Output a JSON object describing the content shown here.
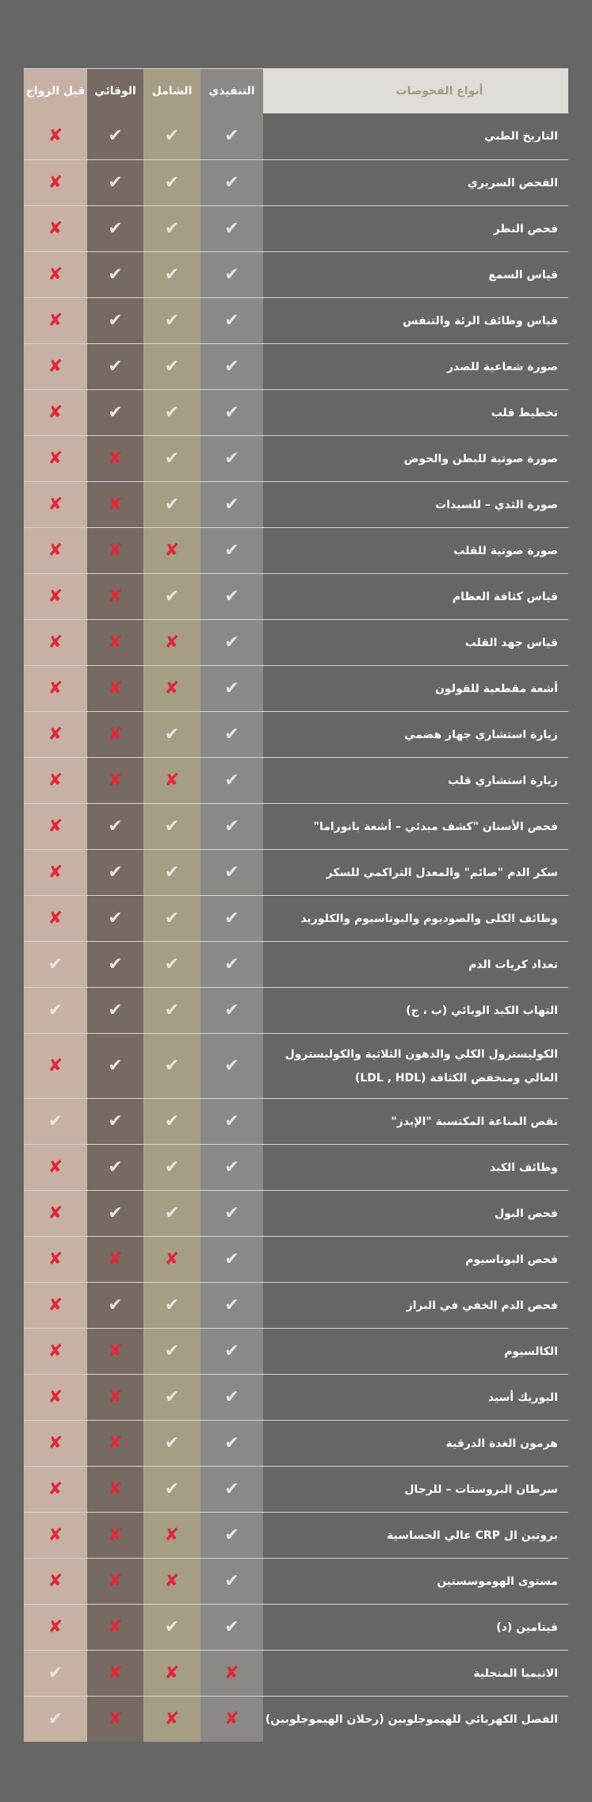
{
  "colors": {
    "background": "#666666",
    "header_bg": "#e0dcd7",
    "col_executive": "#8c8885",
    "col_comprehensive": "#a59e84",
    "col_preventive": "#766a62",
    "col_premarital": "#c7b1a4",
    "check": "#e8e4e0",
    "cross": "#e0283c"
  },
  "header": {
    "types_label": "أنواع الفحوصات",
    "executive": "التنفيذي",
    "comprehensive": "الشامل",
    "preventive": "الوقائي",
    "premarital": "قبل الزواج"
  },
  "icons": {
    "included": "check-icon",
    "excluded": "cross-icon"
  },
  "rows": [
    {
      "label": "التاريخ الطبي",
      "executive": true,
      "comprehensive": true,
      "preventive": true,
      "premarital": false
    },
    {
      "label": "الفحص السريري",
      "executive": true,
      "comprehensive": true,
      "preventive": true,
      "premarital": false
    },
    {
      "label": "فحص النظر",
      "executive": true,
      "comprehensive": true,
      "preventive": true,
      "premarital": false
    },
    {
      "label": "قياس السمع",
      "executive": true,
      "comprehensive": true,
      "preventive": true,
      "premarital": false
    },
    {
      "label": "قياس وظائف الرئة والتنفس",
      "executive": true,
      "comprehensive": true,
      "preventive": true,
      "premarital": false
    },
    {
      "label": "صورة شعاعية للصدر",
      "executive": true,
      "comprehensive": true,
      "preventive": true,
      "premarital": false
    },
    {
      "label": "تخطيط قلب",
      "executive": true,
      "comprehensive": true,
      "preventive": true,
      "premarital": false
    },
    {
      "label": "صورة صوتية للبطن والحوض",
      "executive": true,
      "comprehensive": true,
      "preventive": false,
      "premarital": false
    },
    {
      "label": "صورة الثدي – للسيدات",
      "executive": true,
      "comprehensive": true,
      "preventive": false,
      "premarital": false
    },
    {
      "label": "صورة صوتية للقلب",
      "executive": true,
      "comprehensive": false,
      "preventive": false,
      "premarital": false
    },
    {
      "label": "قياس كثافة العظام",
      "executive": true,
      "comprehensive": true,
      "preventive": false,
      "premarital": false
    },
    {
      "label": "قياس جهد القلب",
      "executive": true,
      "comprehensive": false,
      "preventive": false,
      "premarital": false
    },
    {
      "label": "أشعة مقطعية للقولون",
      "executive": true,
      "comprehensive": false,
      "preventive": false,
      "premarital": false
    },
    {
      "label": "زيارة استشاري جهاز هضمي",
      "executive": true,
      "comprehensive": true,
      "preventive": false,
      "premarital": false
    },
    {
      "label": "زيارة استشاري قلب",
      "executive": true,
      "comprehensive": false,
      "preventive": false,
      "premarital": false
    },
    {
      "label": "فحص الأسنان \"كشف مبدئي – أشعة بانوراما\"",
      "executive": true,
      "comprehensive": true,
      "preventive": true,
      "premarital": false
    },
    {
      "label": "سكر الدم \"صائم\" والمعدل التراكمي للسكر",
      "executive": true,
      "comprehensive": true,
      "preventive": true,
      "premarital": false
    },
    {
      "label": "وظائف الكلى والصوديوم والبوتاسيوم والكلوريد",
      "executive": true,
      "comprehensive": true,
      "preventive": true,
      "premarital": false
    },
    {
      "label": "تعداد كريات الدم",
      "executive": true,
      "comprehensive": true,
      "preventive": true,
      "premarital": true
    },
    {
      "label": "التهاب الكبد الوبائي (ب ، ج)",
      "executive": true,
      "comprehensive": true,
      "preventive": true,
      "premarital": true
    },
    {
      "label": "الكوليسترول الكلي والدهون الثلاثية والكوليسترول العالي ومنخفض الكثافة (LDL , HDL)",
      "executive": true,
      "comprehensive": true,
      "preventive": true,
      "premarital": false,
      "tall": true
    },
    {
      "label": "نقص المناعة المكتسبة \"الإيدز\"",
      "executive": true,
      "comprehensive": true,
      "preventive": true,
      "premarital": true
    },
    {
      "label": "وظائف الكبد",
      "executive": true,
      "comprehensive": true,
      "preventive": true,
      "premarital": false
    },
    {
      "label": "فحص البول",
      "executive": true,
      "comprehensive": true,
      "preventive": true,
      "premarital": false
    },
    {
      "label": "فحص البوتاسيوم",
      "executive": true,
      "comprehensive": false,
      "preventive": false,
      "premarital": false
    },
    {
      "label": "فحص الدم الخفي في البراز",
      "executive": true,
      "comprehensive": true,
      "preventive": true,
      "premarital": false
    },
    {
      "label": "الكالسيوم",
      "executive": true,
      "comprehensive": true,
      "preventive": false,
      "premarital": false
    },
    {
      "label": "اليوريك أسيد",
      "executive": true,
      "comprehensive": true,
      "preventive": false,
      "premarital": false
    },
    {
      "label": "هرمون الغدة الدرقية",
      "executive": true,
      "comprehensive": true,
      "preventive": false,
      "premarital": false
    },
    {
      "label": "سرطان البروستات – للرجال",
      "executive": true,
      "comprehensive": true,
      "preventive": false,
      "premarital": false
    },
    {
      "label": "بروتين ال CRP عالي الحساسية",
      "executive": true,
      "comprehensive": false,
      "preventive": false,
      "premarital": false
    },
    {
      "label": "مستوى الهوموسستين",
      "executive": true,
      "comprehensive": false,
      "preventive": false,
      "premarital": false
    },
    {
      "label": "فيتامين (د)",
      "executive": true,
      "comprehensive": true,
      "preventive": false,
      "premarital": false
    },
    {
      "label": "الانيميا المنجلية",
      "executive": false,
      "comprehensive": false,
      "preventive": false,
      "premarital": true
    },
    {
      "label": "الفصل الكهربائي للهيموجلوبين (رحلان الهيموجلوبين)",
      "executive": false,
      "comprehensive": false,
      "preventive": false,
      "premarital": true
    }
  ]
}
